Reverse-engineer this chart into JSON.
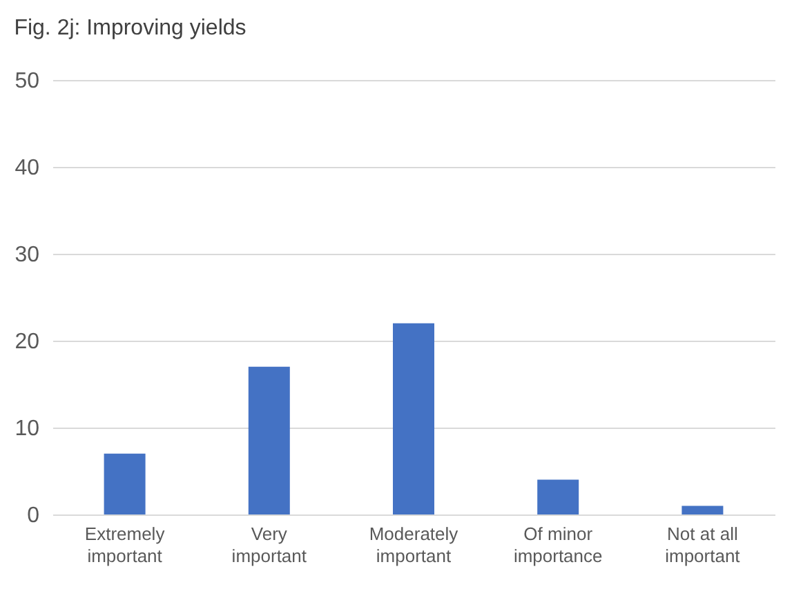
{
  "chart_data": {
    "type": "bar",
    "title": "Fig. 2j: Improving yields",
    "categories": [
      "Extremely important",
      "Very important",
      "Moderately important",
      "Of minor importance",
      "Not at all important"
    ],
    "values": [
      7,
      17,
      22,
      4,
      1
    ],
    "color": "#4472c4",
    "ylim": [
      0,
      50
    ],
    "yticks": [
      0,
      10,
      20,
      30,
      40,
      50
    ],
    "grid": "y"
  }
}
